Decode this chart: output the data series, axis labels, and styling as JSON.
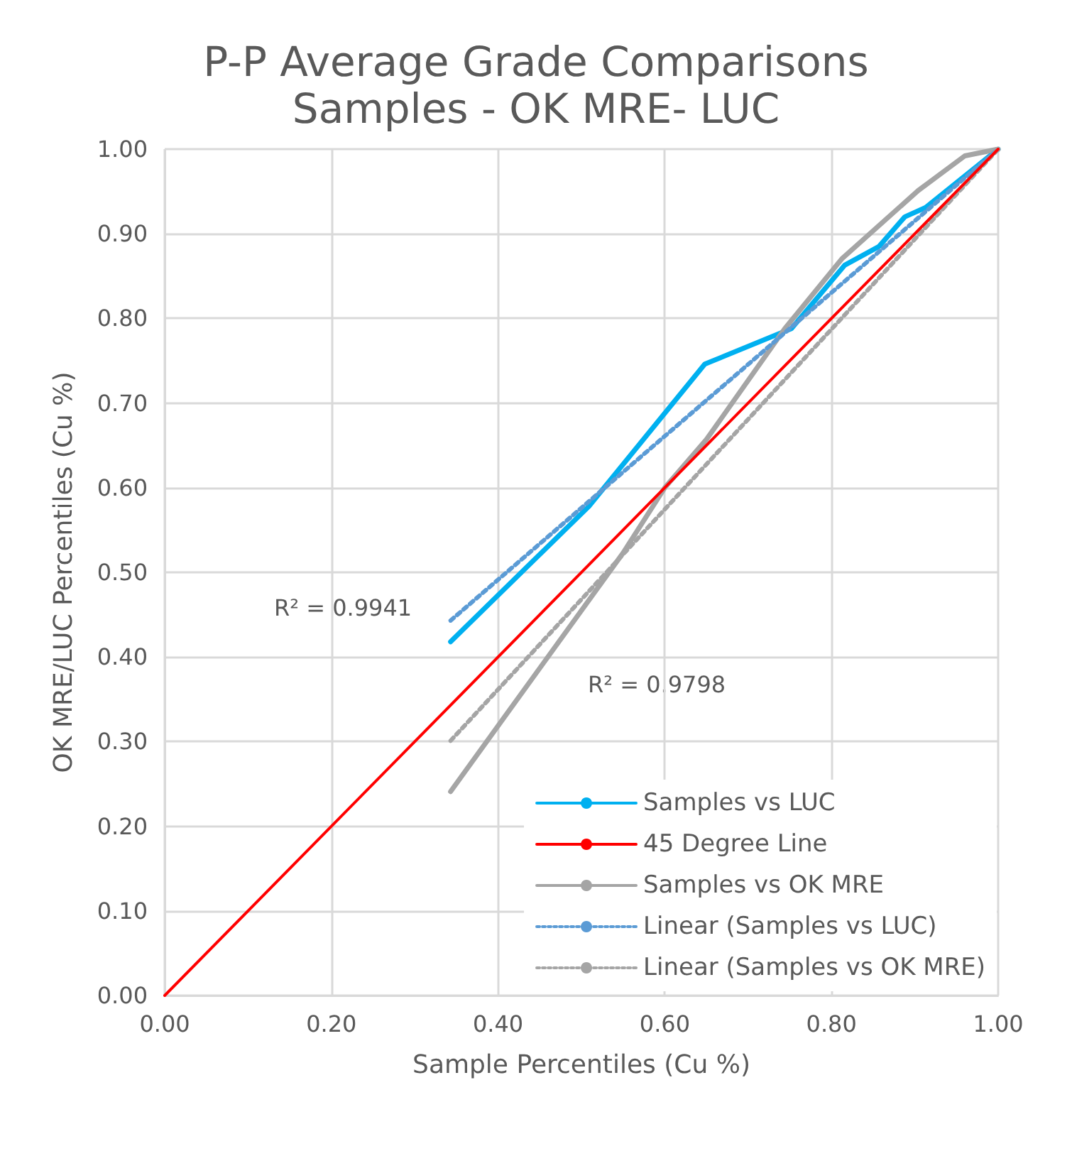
{
  "chart_data": {
    "type": "line",
    "title": "P-P Average Grade Comparisons",
    "subtitle": "Samples - OK MRE- LUC",
    "xlabel": "Sample Percentiles (Cu %)",
    "ylabel": "OK MRE/LUC Percentiles (Cu %)",
    "xlim": [
      0,
      1
    ],
    "ylim": [
      0,
      1
    ],
    "xticks": [
      {
        "value": 0,
        "label": "0.00"
      },
      {
        "value": 0.2,
        "label": "0.20"
      },
      {
        "value": 0.4,
        "label": "0.40"
      },
      {
        "value": 0.6,
        "label": "0.60"
      },
      {
        "value": 0.8,
        "label": "0.80"
      },
      {
        "value": 1,
        "label": "1.00"
      }
    ],
    "yticks": [
      {
        "value": 0,
        "label": "0.00"
      },
      {
        "value": 0.1,
        "label": "0.10"
      },
      {
        "value": 0.2,
        "label": "0.20"
      },
      {
        "value": 0.3,
        "label": "0.30"
      },
      {
        "value": 0.4,
        "label": "0.40"
      },
      {
        "value": 0.5,
        "label": "0.50"
      },
      {
        "value": 0.6,
        "label": "0.60"
      },
      {
        "value": 0.7,
        "label": "0.70"
      },
      {
        "value": 0.8,
        "label": "0.80"
      },
      {
        "value": 0.9,
        "label": "0.90"
      },
      {
        "value": 1,
        "label": "1.00"
      }
    ],
    "grid": true,
    "legend": "bottom right",
    "series": [
      {
        "name": "Samples vs LUC",
        "color": "#00b0f0",
        "x": [
          0.343,
          0.509,
          0.648,
          0.752,
          0.816,
          0.857,
          0.888,
          0.913,
          1.0
        ],
        "values": [
          0.418,
          0.578,
          0.746,
          0.788,
          0.863,
          0.885,
          0.92,
          0.931,
          1.0
        ]
      },
      {
        "name": "45 Degree Line",
        "color": "#ff0000",
        "x": [
          0,
          1
        ],
        "values": [
          0,
          1
        ]
      },
      {
        "name": "Samples vs OK MRE",
        "color": "#a5a5a5",
        "x": [
          0.343,
          0.55,
          0.6,
          0.65,
          0.744,
          0.813,
          0.904,
          0.96,
          1.0
        ],
        "values": [
          0.241,
          0.523,
          0.6,
          0.657,
          0.788,
          0.871,
          0.951,
          0.992,
          1.0
        ]
      },
      {
        "name": "Linear (Samples vs LUC)",
        "color": "#5b9bd5",
        "line_style": "dotted",
        "x": [
          0.343,
          1.0
        ],
        "values": [
          0.443,
          1.0
        ]
      },
      {
        "name": "Linear (Samples vs OK MRE)",
        "color": "#a5a5a5",
        "line_style": "dotted",
        "x": [
          0.343,
          1.0
        ],
        "values": [
          0.301,
          1.0
        ]
      }
    ],
    "annotations": [
      "R² = 0.9941",
      "R² = 0.9798"
    ]
  }
}
